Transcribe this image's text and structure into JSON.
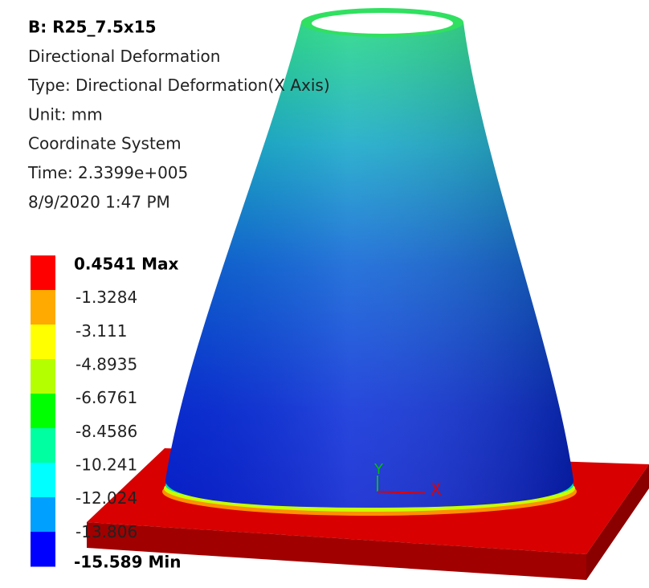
{
  "header": {
    "lines": [
      "B: R25_7.5x15",
      "Directional Deformation",
      "Type: Directional Deformation(X Axis)",
      "Unit: mm",
      "Coordinate System",
      "Time: 2.3399e+005",
      "8/9/2020 1:47 PM"
    ]
  },
  "legend": {
    "labels": [
      "0.4541 Max",
      "-1.3284",
      "-3.111",
      "-4.8935",
      "-6.6761",
      "-8.4586",
      "-10.241",
      "-12.024",
      "-13.806",
      "-15.589 Min"
    ],
    "colors": [
      "#ff0000",
      "#ffaa00",
      "#ffff00",
      "#b4ff00",
      "#00ff00",
      "#00ffa0",
      "#00ffff",
      "#00a0ff",
      "#0000ff"
    ]
  },
  "triad": {
    "x": "X",
    "y": "Y"
  }
}
